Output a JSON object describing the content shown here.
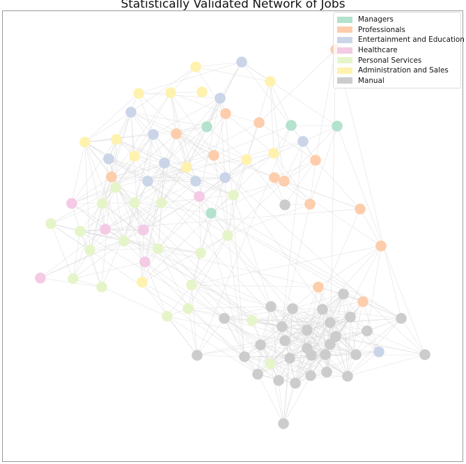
{
  "title": "Statistically Validated Network of Jobs",
  "categories": [
    {
      "key": "managers",
      "label": "Managers",
      "color": "#b3e2cd"
    },
    {
      "key": "professionals",
      "label": "Professionals",
      "color": "#fdcdac"
    },
    {
      "key": "entertainment",
      "label": "Entertainment and Education",
      "color": "#cbd5e8"
    },
    {
      "key": "healthcare",
      "label": "Healthcare",
      "color": "#f4cae4"
    },
    {
      "key": "personal",
      "label": "Personal Services",
      "color": "#e6f5c9"
    },
    {
      "key": "admin",
      "label": "Administration and Sales",
      "color": "#fff2ae"
    },
    {
      "key": "manual",
      "label": "Manual",
      "color": "#cccccc"
    }
  ],
  "edge_color": "#d8d8d8"
}
